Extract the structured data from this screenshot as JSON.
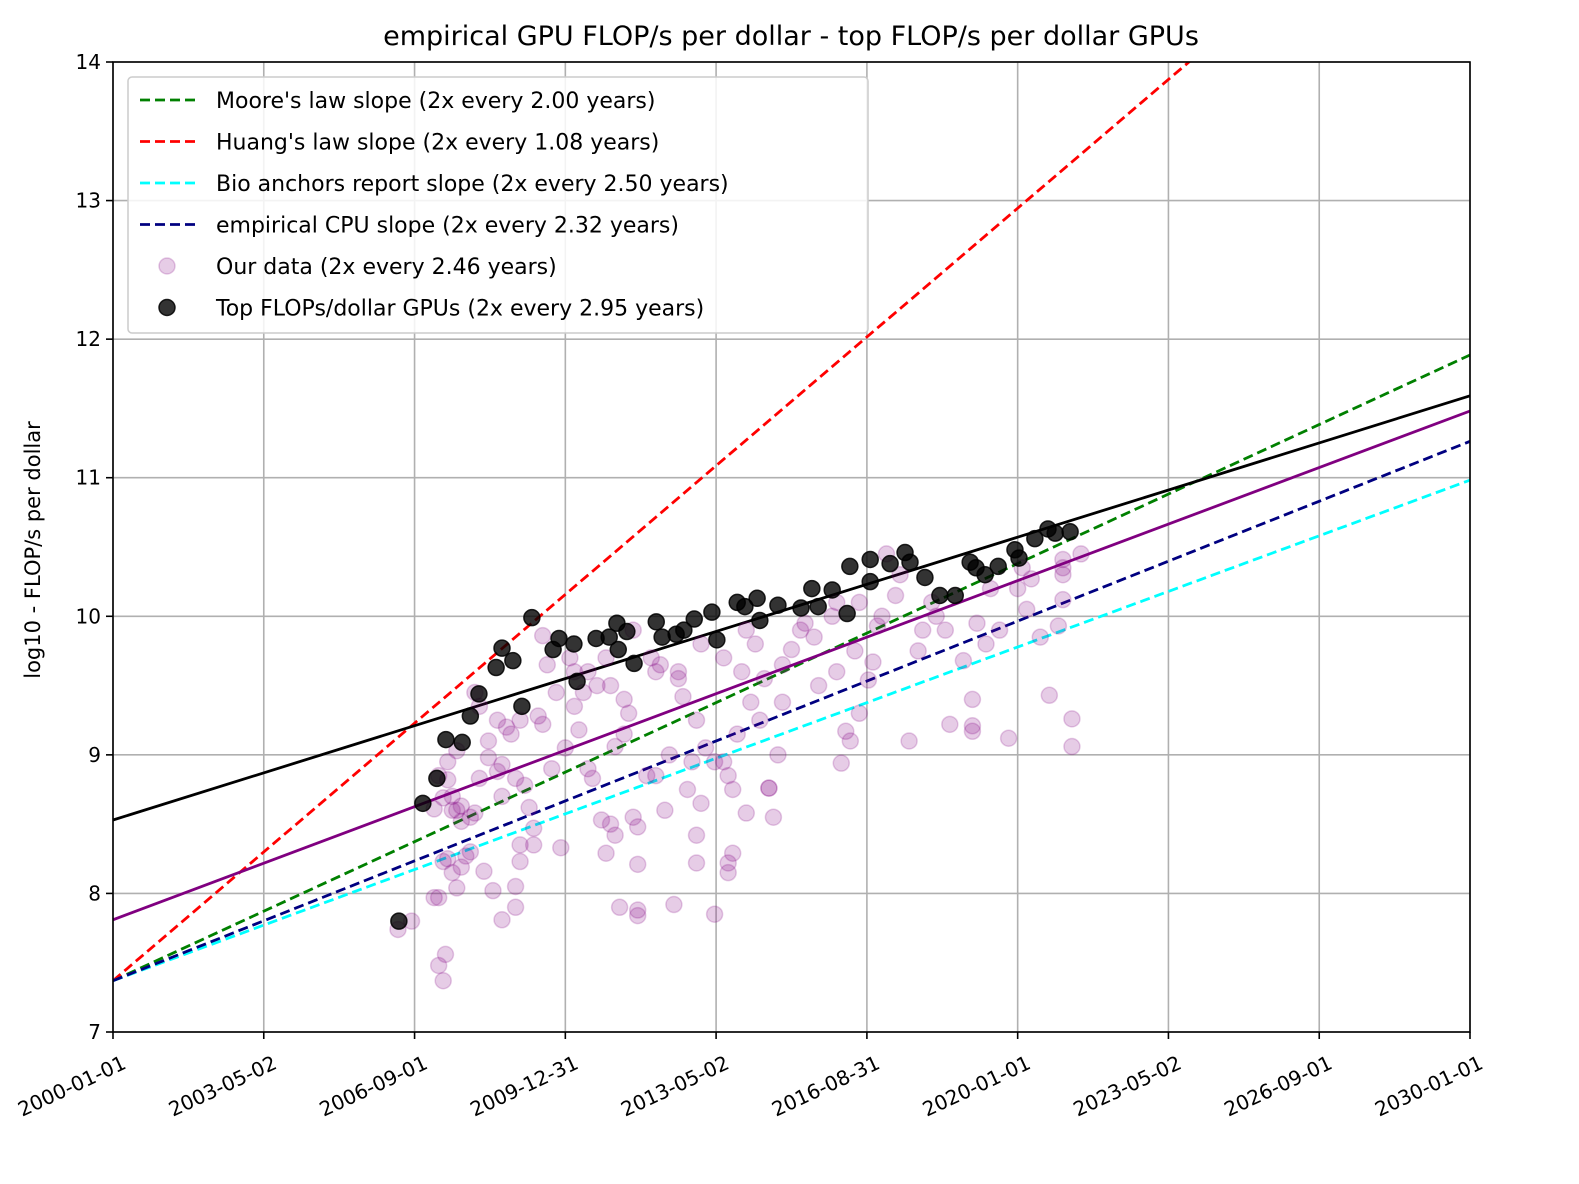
{
  "chart_data": {
    "type": "scatter",
    "title": "empirical GPU FLOP/s per dollar - top FLOP/s per dollar GPUs",
    "xlabel": "",
    "ylabel": "log10 - FLOP/s per dollar",
    "xlim_years": [
      2000,
      2030
    ],
    "ylim": [
      7,
      14
    ],
    "grid": true,
    "legend_placement": "top-left",
    "x_ticks": [
      {
        "year": 2000.0,
        "label": "2000-01-01"
      },
      {
        "year": 2003.333,
        "label": "2003-05-02"
      },
      {
        "year": 2006.667,
        "label": "2006-09-01"
      },
      {
        "year": 2010.0,
        "label": "2009-12-31"
      },
      {
        "year": 2013.333,
        "label": "2013-05-02"
      },
      {
        "year": 2016.667,
        "label": "2016-08-31"
      },
      {
        "year": 2020.0,
        "label": "2020-01-01"
      },
      {
        "year": 2023.333,
        "label": "2023-05-02"
      },
      {
        "year": 2026.667,
        "label": "2026-09-01"
      },
      {
        "year": 2030.0,
        "label": "2030-01-01"
      }
    ],
    "y_ticks": [
      7,
      8,
      9,
      10,
      11,
      12,
      13,
      14
    ],
    "lines": [
      {
        "name": "Moore's law slope (2x every 2.00 years)",
        "color": "#008000",
        "dash": true,
        "y2000": 7.37,
        "doubling_years": 2.0
      },
      {
        "name": "Huang's law slope (2x every 1.08 years)",
        "color": "#ff0000",
        "dash": true,
        "y2000": 7.37,
        "doubling_years": 1.08
      },
      {
        "name": "Bio anchors report slope (2x every 2.50 years)",
        "color": "#00ffff",
        "dash": true,
        "y2000": 7.37,
        "doubling_years": 2.5
      },
      {
        "name": "empirical CPU slope (2x every 2.32 years)",
        "color": "#000080",
        "dash": true,
        "y2000": 7.37,
        "doubling_years": 2.32
      },
      {
        "name": "Our data fit",
        "color": "#800080",
        "dash": false,
        "y2000": 7.81,
        "doubling_years": 2.46
      },
      {
        "name": "Top GPUs fit",
        "color": "#000000",
        "dash": false,
        "y2000": 8.53,
        "doubling_years": 2.95
      }
    ],
    "series": [
      {
        "name": "Our data (2x every 2.46 years)",
        "color": "#800080",
        "points": [
          [
            6.3,
            7.74
          ],
          [
            6.6,
            7.8
          ],
          [
            7.2,
            7.48
          ],
          [
            7.35,
            7.56
          ],
          [
            7.3,
            7.37
          ],
          [
            7.1,
            7.97
          ],
          [
            7.2,
            7.97
          ],
          [
            7.3,
            8.23
          ],
          [
            7.4,
            8.25
          ],
          [
            7.5,
            8.15
          ],
          [
            7.6,
            8.04
          ],
          [
            7.7,
            8.19
          ],
          [
            7.8,
            8.27
          ],
          [
            7.7,
            8.52
          ],
          [
            7.6,
            8.6
          ],
          [
            7.5,
            8.6
          ],
          [
            7.3,
            8.69
          ],
          [
            7.1,
            8.61
          ],
          [
            7.2,
            8.85
          ],
          [
            7.4,
            8.95
          ],
          [
            7.5,
            8.7
          ],
          [
            7.7,
            8.63
          ],
          [
            7.9,
            8.55
          ],
          [
            8.0,
            8.58
          ],
          [
            8.2,
            8.16
          ],
          [
            8.4,
            8.02
          ],
          [
            8.6,
            7.81
          ],
          [
            8.9,
            7.9
          ],
          [
            8.9,
            8.05
          ],
          [
            9.0,
            8.23
          ],
          [
            9.0,
            8.35
          ],
          [
            9.3,
            8.35
          ],
          [
            9.3,
            8.47
          ],
          [
            9.1,
            8.78
          ],
          [
            8.9,
            8.83
          ],
          [
            8.6,
            8.93
          ],
          [
            8.3,
            8.98
          ],
          [
            8.1,
            8.83
          ],
          [
            8.5,
            8.88
          ],
          [
            8.7,
            9.2
          ],
          [
            8.5,
            9.25
          ],
          [
            8.8,
            9.15
          ],
          [
            9.0,
            9.25
          ],
          [
            9.4,
            9.28
          ],
          [
            9.5,
            9.22
          ],
          [
            8.0,
            9.45
          ],
          [
            8.1,
            9.35
          ],
          [
            7.6,
            9.03
          ],
          [
            7.4,
            8.82
          ],
          [
            9.2,
            8.62
          ],
          [
            9.6,
            9.65
          ],
          [
            9.5,
            9.86
          ],
          [
            9.9,
            8.33
          ],
          [
            10.1,
            9.7
          ],
          [
            10.2,
            9.35
          ],
          [
            10.3,
            9.18
          ],
          [
            10.4,
            9.45
          ],
          [
            10.5,
            9.6
          ],
          [
            10.6,
            8.83
          ],
          [
            10.8,
            8.53
          ],
          [
            10.9,
            8.29
          ],
          [
            11.0,
            8.5
          ],
          [
            11.1,
            8.42
          ],
          [
            11.2,
            7.9
          ],
          [
            11.5,
            8.55
          ],
          [
            11.6,
            8.48
          ],
          [
            11.6,
            8.21
          ],
          [
            11.6,
            7.88
          ],
          [
            11.6,
            7.84
          ],
          [
            11.1,
            9.06
          ],
          [
            11.3,
            9.15
          ],
          [
            11.0,
            9.5
          ],
          [
            11.3,
            9.4
          ],
          [
            11.8,
            8.85
          ],
          [
            12.0,
            9.6
          ],
          [
            12.5,
            9.55
          ],
          [
            12.3,
            9.0
          ],
          [
            12.4,
            7.92
          ],
          [
            12.2,
            8.6
          ],
          [
            12.6,
            9.42
          ],
          [
            12.7,
            8.75
          ],
          [
            12.8,
            8.95
          ],
          [
            12.9,
            8.42
          ],
          [
            12.9,
            8.22
          ],
          [
            13.0,
            8.65
          ],
          [
            13.1,
            9.05
          ],
          [
            13.3,
            7.85
          ],
          [
            13.3,
            8.95
          ],
          [
            13.5,
            8.95
          ],
          [
            13.5,
            9.7
          ],
          [
            13.6,
            8.85
          ],
          [
            13.6,
            8.15
          ],
          [
            13.6,
            8.22
          ],
          [
            13.7,
            8.29
          ],
          [
            13.7,
            8.75
          ],
          [
            13.8,
            9.15
          ],
          [
            14.0,
            8.58
          ],
          [
            14.1,
            9.38
          ],
          [
            14.3,
            9.25
          ],
          [
            14.4,
            9.55
          ],
          [
            14.5,
            8.76
          ],
          [
            14.5,
            8.76
          ],
          [
            14.6,
            8.55
          ],
          [
            14.7,
            9.0
          ],
          [
            14.8,
            9.65
          ],
          [
            14.8,
            9.38
          ],
          [
            15.0,
            9.76
          ],
          [
            15.2,
            9.9
          ],
          [
            15.5,
            9.85
          ],
          [
            15.6,
            9.5
          ],
          [
            16.0,
            9.6
          ],
          [
            16.1,
            8.94
          ],
          [
            16.2,
            9.17
          ],
          [
            16.3,
            9.1
          ],
          [
            16.4,
            9.75
          ],
          [
            16.5,
            9.3
          ],
          [
            16.7,
            9.54
          ],
          [
            16.8,
            9.67
          ],
          [
            16.9,
            9.93
          ],
          [
            17.0,
            10.0
          ],
          [
            17.6,
            9.1
          ],
          [
            17.8,
            9.75
          ],
          [
            17.9,
            9.9
          ],
          [
            18.1,
            10.1
          ],
          [
            18.5,
            9.22
          ],
          [
            18.8,
            9.68
          ],
          [
            19.0,
            9.17
          ],
          [
            19.0,
            9.21
          ],
          [
            19.0,
            9.4
          ],
          [
            19.1,
            9.95
          ],
          [
            19.3,
            9.8
          ],
          [
            19.6,
            9.9
          ],
          [
            19.8,
            9.12
          ],
          [
            20.0,
            10.2
          ],
          [
            20.2,
            10.05
          ],
          [
            20.3,
            10.27
          ],
          [
            20.5,
            9.85
          ],
          [
            20.7,
            9.43
          ],
          [
            20.9,
            9.93
          ],
          [
            21.0,
            10.12
          ],
          [
            21.0,
            10.3
          ],
          [
            21.0,
            10.35
          ],
          [
            21.0,
            10.41
          ],
          [
            21.2,
            9.26
          ],
          [
            21.2,
            9.06
          ],
          [
            21.4,
            10.45
          ],
          [
            17.1,
            10.45
          ],
          [
            17.4,
            10.3
          ],
          [
            16.5,
            10.1
          ],
          [
            15.9,
            10.0
          ],
          [
            14.0,
            9.9
          ],
          [
            13.0,
            9.8
          ],
          [
            12.5,
            9.6
          ],
          [
            10.9,
            9.7
          ],
          [
            11.5,
            9.9
          ],
          [
            10.2,
            9.6
          ],
          [
            10.7,
            9.5
          ],
          [
            9.8,
            9.45
          ],
          [
            10.0,
            9.05
          ],
          [
            11.9,
            9.7
          ],
          [
            12.1,
            9.65
          ],
          [
            13.9,
            9.6
          ],
          [
            14.2,
            9.8
          ],
          [
            15.3,
            9.95
          ],
          [
            16.0,
            10.1
          ],
          [
            17.3,
            10.15
          ],
          [
            18.2,
            10.0
          ],
          [
            18.4,
            9.9
          ],
          [
            19.4,
            10.2
          ],
          [
            20.1,
            10.35
          ],
          [
            8.3,
            9.1
          ],
          [
            8.6,
            8.7
          ],
          [
            7.9,
            8.3
          ],
          [
            9.7,
            8.9
          ],
          [
            10.5,
            8.9
          ],
          [
            11.4,
            9.3
          ],
          [
            12.0,
            8.85
          ],
          [
            12.9,
            9.25
          ]
        ]
      },
      {
        "name": "Top FLOPs/dollar GPUs (2x every 2.95 years)",
        "color": "#000000",
        "points": [
          [
            6.32,
            7.8
          ],
          [
            6.85,
            8.65
          ],
          [
            7.16,
            8.83
          ],
          [
            7.36,
            9.11
          ],
          [
            7.72,
            9.09
          ],
          [
            7.9,
            9.28
          ],
          [
            8.09,
            9.44
          ],
          [
            8.47,
            9.63
          ],
          [
            8.6,
            9.77
          ],
          [
            8.84,
            9.68
          ],
          [
            9.04,
            9.35
          ],
          [
            9.26,
            9.99
          ],
          [
            9.73,
            9.76
          ],
          [
            9.86,
            9.84
          ],
          [
            10.19,
            9.8
          ],
          [
            10.26,
            9.53
          ],
          [
            10.68,
            9.84
          ],
          [
            10.97,
            9.85
          ],
          [
            11.14,
            9.95
          ],
          [
            11.17,
            9.76
          ],
          [
            11.36,
            9.89
          ],
          [
            11.52,
            9.66
          ],
          [
            12.01,
            9.96
          ],
          [
            12.14,
            9.85
          ],
          [
            12.45,
            9.87
          ],
          [
            12.62,
            9.9
          ],
          [
            12.85,
            9.98
          ],
          [
            13.24,
            10.03
          ],
          [
            13.35,
            9.83
          ],
          [
            13.8,
            10.1
          ],
          [
            13.97,
            10.07
          ],
          [
            14.24,
            10.13
          ],
          [
            14.3,
            9.97
          ],
          [
            14.7,
            10.08
          ],
          [
            15.21,
            10.06
          ],
          [
            15.45,
            10.2
          ],
          [
            15.59,
            10.07
          ],
          [
            15.9,
            10.19
          ],
          [
            16.23,
            10.02
          ],
          [
            16.29,
            10.36
          ],
          [
            16.74,
            10.41
          ],
          [
            16.74,
            10.25
          ],
          [
            17.18,
            10.38
          ],
          [
            17.51,
            10.46
          ],
          [
            17.62,
            10.39
          ],
          [
            17.95,
            10.28
          ],
          [
            18.28,
            10.15
          ],
          [
            18.62,
            10.15
          ],
          [
            18.95,
            10.39
          ],
          [
            19.08,
            10.35
          ],
          [
            19.28,
            10.3
          ],
          [
            19.57,
            10.36
          ],
          [
            19.94,
            10.48
          ],
          [
            20.03,
            10.42
          ],
          [
            20.38,
            10.56
          ],
          [
            20.67,
            10.63
          ],
          [
            20.83,
            10.6
          ],
          [
            21.16,
            10.61
          ]
        ]
      }
    ],
    "legend": [
      {
        "label": "Moore's law slope (2x every 2.00 years)",
        "kind": "dash",
        "color": "#008000"
      },
      {
        "label": "Huang's law slope (2x every 1.08 years)",
        "kind": "dash",
        "color": "#ff0000"
      },
      {
        "label": "Bio anchors report slope (2x every 2.50 years)",
        "kind": "dash",
        "color": "#00ffff"
      },
      {
        "label": "empirical CPU slope (2x every 2.32 years)",
        "kind": "dash",
        "color": "#000080"
      },
      {
        "label": "Our data (2x every 2.46 years)",
        "kind": "dot",
        "color": "#800080"
      },
      {
        "label": "Top FLOPs/dollar GPUs (2x every 2.95 years)",
        "kind": "dot",
        "color": "#000000"
      }
    ]
  }
}
